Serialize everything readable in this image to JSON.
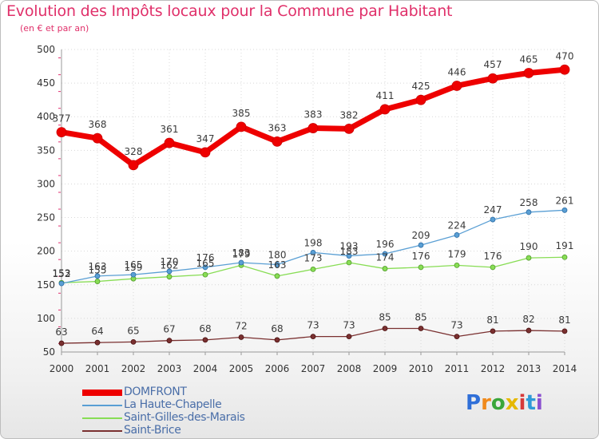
{
  "chart_data": {
    "type": "line",
    "title": "Evolution des Impôts locaux pour la Commune par Habitant",
    "subtitle": "(en € et par an)",
    "xlabel": "",
    "ylabel": "",
    "ylim": [
      50,
      500
    ],
    "yticks": [
      50,
      100,
      150,
      200,
      250,
      300,
      350,
      400,
      450,
      500
    ],
    "categories": [
      "2000",
      "2001",
      "2002",
      "2003",
      "2004",
      "2005",
      "2006",
      "2007",
      "2008",
      "2009",
      "2010",
      "2011",
      "2012",
      "2013",
      "2014"
    ],
    "grid": true,
    "legend_position": "bottom-left",
    "series": [
      {
        "name": "DOMFRONT",
        "color": "#ee0000",
        "values": [
          377,
          368,
          328,
          361,
          347,
          385,
          363,
          383,
          382,
          411,
          425,
          446,
          457,
          465,
          470
        ]
      },
      {
        "name": "La Haute-Chapelle",
        "color": "#5a9fd4",
        "values": [
          152,
          163,
          165,
          170,
          176,
          183,
          180,
          198,
          193,
          196,
          209,
          224,
          247,
          258,
          261
        ]
      },
      {
        "name": "Saint-Gilles-des-Marais",
        "color": "#88dd55",
        "values": [
          153,
          155,
          159,
          162,
          165,
          179,
          163,
          173,
          183,
          174,
          176,
          179,
          176,
          190,
          191
        ]
      },
      {
        "name": "Saint-Brice",
        "color": "#7a3030",
        "values": [
          63,
          64,
          65,
          67,
          68,
          72,
          68,
          73,
          73,
          85,
          85,
          73,
          81,
          82,
          81
        ]
      }
    ]
  },
  "logo": {
    "text": "Proxiti",
    "letters": [
      {
        "ch": "P",
        "color": "#2f6fd8"
      },
      {
        "ch": "r",
        "color": "#f08a1c"
      },
      {
        "ch": "o",
        "color": "#3aa63a"
      },
      {
        "ch": "x",
        "color": "#e6b800"
      },
      {
        "ch": "i",
        "color": "#d63a3a"
      },
      {
        "ch": "t",
        "color": "#2f9ad8"
      },
      {
        "ch": "i",
        "color": "#8a4fcf"
      }
    ]
  }
}
